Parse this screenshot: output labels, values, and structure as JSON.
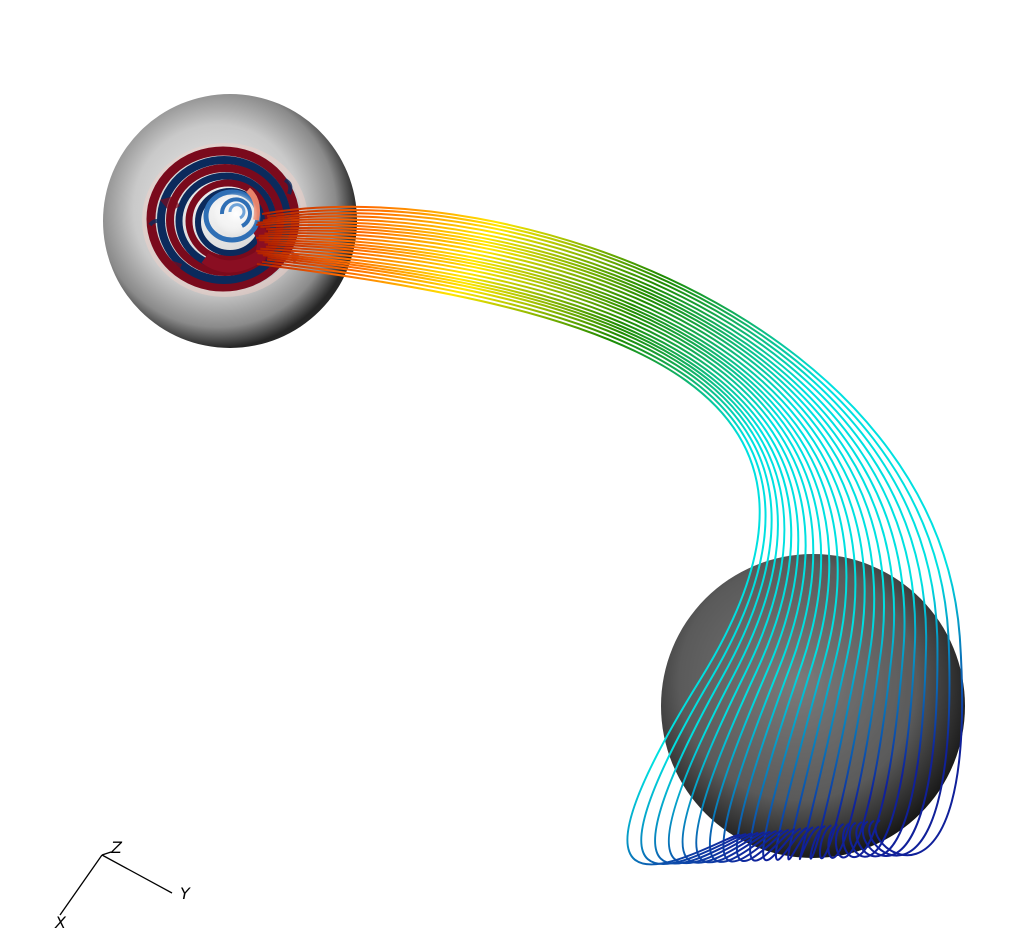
{
  "scene": {
    "objects": [
      "sphere",
      "sphere",
      "field-lines"
    ],
    "background": "#ffffff",
    "surface_colormap": [
      "#0b2a5c",
      "#2f6fb5",
      "#ffffff",
      "#e8836a",
      "#7a0a1c"
    ],
    "line_colormap": [
      "#b02000",
      "#ff6a00",
      "#ffe600",
      "#1e8a00",
      "#00e0e0",
      "#10209a"
    ]
  },
  "orientation_axes": {
    "x_label": "X",
    "y_label": "Y",
    "z_label": "Z"
  }
}
